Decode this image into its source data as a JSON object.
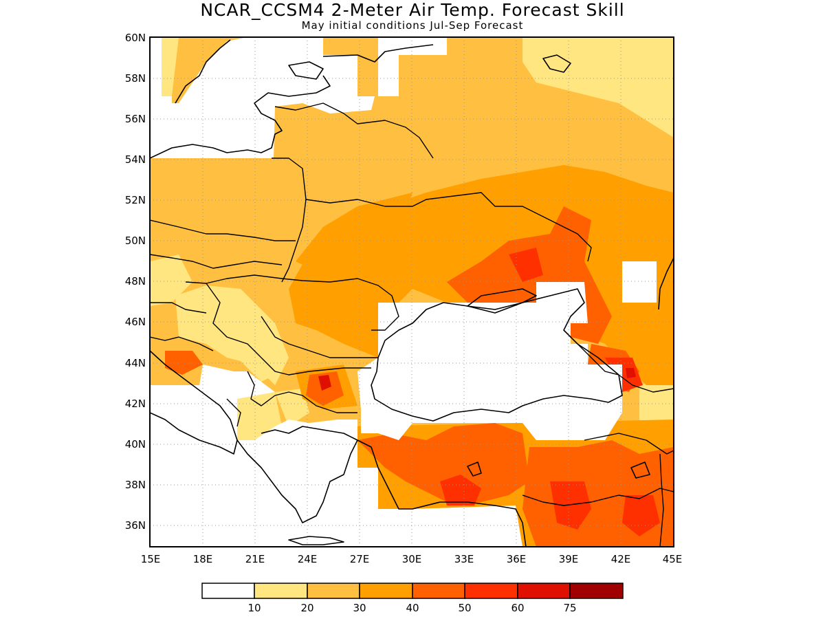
{
  "title": "NCAR_CCSM4 2-Meter Air Temp. Forecast Skill",
  "subtitle": "May initial conditions  Jul-Sep Forecast",
  "map": {
    "lon_range": [
      15,
      45
    ],
    "lat_range": [
      35,
      60
    ],
    "lat_labels": [
      "60N",
      "58N",
      "56N",
      "54N",
      "52N",
      "50N",
      "48N",
      "46N",
      "44N",
      "42N",
      "40N",
      "38N",
      "36N"
    ],
    "lon_labels": [
      "15E",
      "18E",
      "21E",
      "24E",
      "27E",
      "30E",
      "33E",
      "36E",
      "39E",
      "42E",
      "45E"
    ],
    "gridlines": "dotted"
  },
  "colorbar": {
    "labels": [
      "10",
      "20",
      "30",
      "40",
      "50",
      "60",
      "75"
    ],
    "colors": [
      "#ffffff",
      "#ffe680",
      "#ffbf40",
      "#ffa000",
      "#ff6000",
      "#ff3000",
      "#e01000",
      "#a00000"
    ]
  }
}
